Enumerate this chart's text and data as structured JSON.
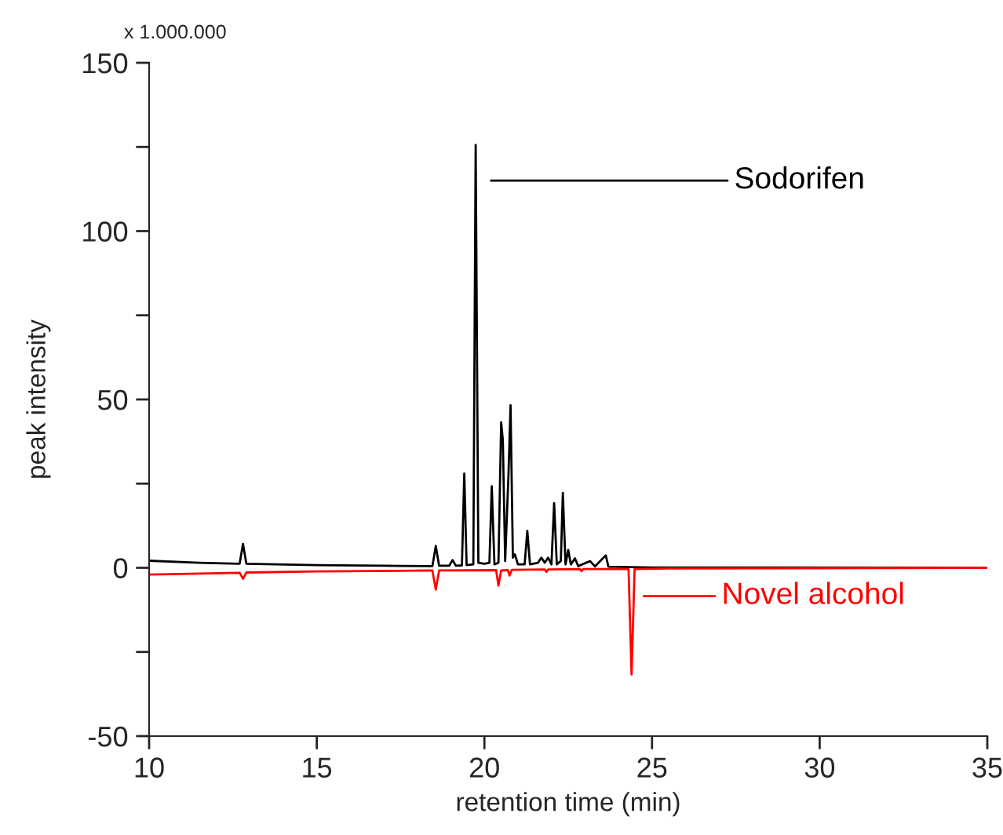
{
  "chart_data": {
    "type": "line",
    "xlabel": "retention time (min)",
    "ylabel": "peak intensity",
    "xlim": [
      10,
      35
    ],
    "xticks": [
      10,
      15,
      20,
      25,
      30,
      35
    ],
    "ylim": [
      -50,
      150
    ],
    "yticks": [
      -50,
      {
        "value": -25,
        "label": null
      },
      0,
      {
        "value": 25,
        "label": null
      },
      50,
      {
        "value": 75,
        "label": null
      },
      100,
      {
        "value": 125,
        "label": null
      },
      150
    ],
    "grid": false,
    "legend": false,
    "marker": "none",
    "line_style": "solid",
    "annotations": [
      "Sodorifen",
      "Novel alcohol",
      "x 1.000.000"
    ],
    "series": [
      {
        "color": "#000000",
        "x": [
          10,
          11.5,
          12.7,
          12.8,
          12.9,
          15,
          17,
          18.45,
          18.55,
          18.65,
          18.95,
          19.05,
          19.15,
          19.33,
          19.4,
          19.47,
          19.67,
          19.74,
          19.82,
          20.0,
          20.15,
          20.22,
          20.3,
          20.42,
          20.5,
          20.55,
          20.62,
          20.72,
          20.78,
          20.85,
          20.91,
          21.0,
          21.2,
          21.28,
          21.36,
          21.6,
          21.7,
          21.8,
          21.9,
          22.0,
          22.08,
          22.16,
          22.28,
          22.34,
          22.42,
          22.5,
          22.58,
          22.7,
          22.8,
          23.15,
          23.3,
          23.62,
          23.7,
          25,
          35
        ],
        "values": [
          2.1,
          1.5,
          1.2,
          7.1,
          1.2,
          0.8,
          0.6,
          0.5,
          6.5,
          0.6,
          0.6,
          2.3,
          0.6,
          0.7,
          28,
          0.8,
          1,
          125.6,
          1.5,
          1.2,
          1.5,
          24.2,
          1,
          1.5,
          43.2,
          38,
          2,
          28,
          48.3,
          3,
          4,
          1,
          1,
          11,
          1,
          1.5,
          3,
          1.5,
          3,
          1,
          19.2,
          1,
          2,
          22.2,
          1,
          5.3,
          1,
          2.8,
          0.5,
          2,
          0.4,
          3.7,
          0.3,
          0.1,
          0
        ]
      },
      {
        "color": "#ff0000",
        "x": [
          10,
          12.7,
          12.8,
          12.9,
          15,
          18.45,
          18.55,
          18.65,
          20.35,
          20.42,
          20.5,
          20.7,
          20.75,
          20.82,
          21.8,
          21.85,
          21.9,
          22.85,
          22.9,
          22.95,
          24.3,
          24.39,
          24.48,
          25.5,
          35
        ],
        "values": [
          -2,
          -1.5,
          -3.3,
          -1.4,
          -1.1,
          -0.8,
          -6.5,
          -0.8,
          -0.7,
          -5.3,
          -0.8,
          -0.7,
          -2.3,
          -0.6,
          -0.5,
          -1.2,
          -0.5,
          -0.4,
          -1,
          -0.4,
          -0.4,
          -31.7,
          -0.4,
          -0.2,
          0
        ]
      }
    ]
  }
}
